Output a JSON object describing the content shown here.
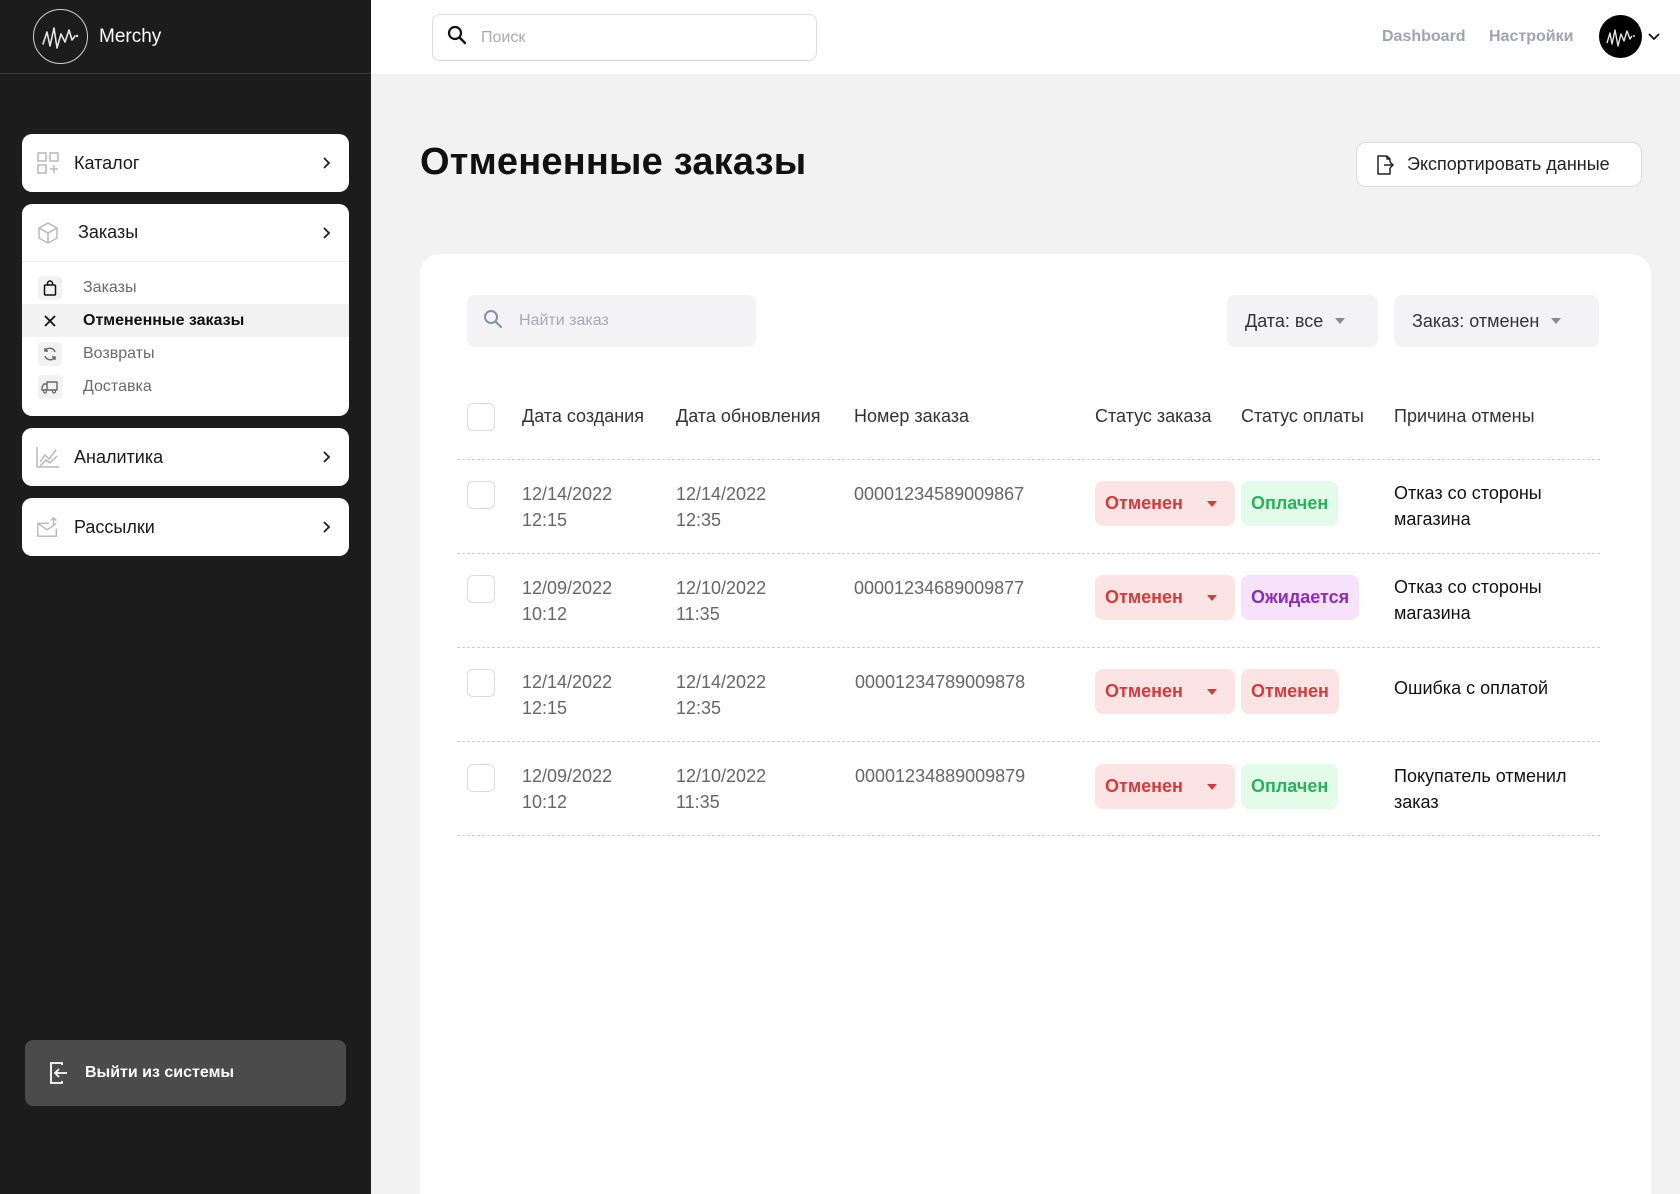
{
  "brand": {
    "name": "Merchy"
  },
  "sidebar": {
    "catalog": "Каталог",
    "orders": "Заказы",
    "orders_sub": [
      {
        "label": "Заказы",
        "icon": "shopping-bag-icon"
      },
      {
        "label": "Отмененные заказы",
        "icon": "close-icon"
      },
      {
        "label": "Возвраты",
        "icon": "refresh-icon"
      },
      {
        "label": "Доставка",
        "icon": "truck-icon"
      }
    ],
    "analytics": "Аналитика",
    "mailings": "Рассылки",
    "logout": "Выйти из системы"
  },
  "topbar": {
    "search_placeholder": "Поиск",
    "dashboard": "Dashboard",
    "settings": "Настройки"
  },
  "page": {
    "title": "Отмененные заказы",
    "export": "Экспортировать данные"
  },
  "filters": {
    "search_placeholder": "Найти заказ",
    "date": "Дата: все",
    "order": "Заказ: отменен"
  },
  "table": {
    "headers": {
      "created": "Дата создания",
      "updated": "Дата обновления",
      "number": "Номер заказа",
      "order_status": "Статус заказа",
      "payment_status": "Статус оплаты",
      "reason": "Причина отмены"
    },
    "rows": [
      {
        "created_date": "12/14/2022",
        "created_time": "12:15",
        "updated_date": "12/14/2022",
        "updated_time": "12:35",
        "number": "00001234589009867",
        "status": "Отменен",
        "payment": "Оплачен",
        "reason1": "Отказ со стороны",
        "reason2": "магазина"
      },
      {
        "created_date": "12/09/2022",
        "created_time": "10:12",
        "updated_date": "12/10/2022",
        "updated_time": "11:35",
        "number": "00001234689009877",
        "status": "Отменен",
        "payment": "Ожидается",
        "reason1": "Отказ со стороны",
        "reason2": "магазина"
      },
      {
        "created_date": "12/14/2022",
        "created_time": "12:15",
        "updated_date": "12/14/2022",
        "updated_time": "12:35",
        "number": "00001234789009878",
        "status": "Отменен",
        "payment": "Отменен",
        "reason1": "Ошибка с оплатой",
        "reason2": ""
      },
      {
        "created_date": "12/09/2022",
        "created_time": "10:12",
        "updated_date": "12/10/2022",
        "updated_time": "11:35",
        "number": "00001234889009879",
        "status": "Отменен",
        "payment": "Оплачен",
        "reason1": "Покупатель отменил",
        "reason2": "заказ"
      }
    ]
  },
  "colors": {
    "sidebar_bg": "#1c1c1c",
    "cancel_red": "#d23c3c",
    "paid_green": "#26b35a",
    "pending_purple": "#8f2bb8"
  }
}
